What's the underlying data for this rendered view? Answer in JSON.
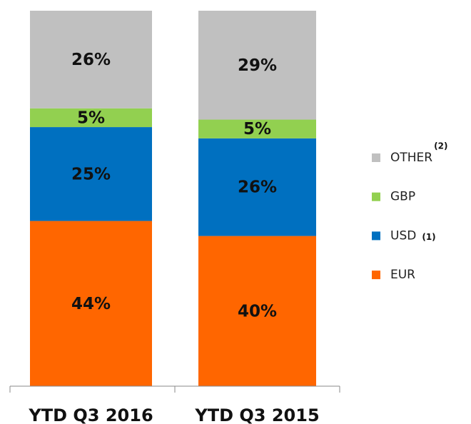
{
  "chart_data": {
    "type": "stacked_bar",
    "categories": [
      "YTD Q3 2016",
      "YTD Q3 2015"
    ],
    "series": [
      {
        "name": "EUR",
        "color": "#ff6600",
        "values": [
          44,
          40
        ],
        "value_labels": [
          "44%",
          "40%"
        ]
      },
      {
        "name": "USD",
        "color": "#0070c0",
        "values": [
          25,
          26
        ],
        "value_labels": [
          "25%",
          "26%"
        ],
        "note": "(1)"
      },
      {
        "name": "GBP",
        "color": "#92d050",
        "values": [
          5,
          5
        ],
        "value_labels": [
          "5%",
          "5%"
        ]
      },
      {
        "name": "OTHER",
        "color": "#c0c0c0",
        "values": [
          26,
          29
        ],
        "value_labels": [
          "26%",
          "29%"
        ],
        "note": "(2)"
      }
    ],
    "legend": "right"
  }
}
